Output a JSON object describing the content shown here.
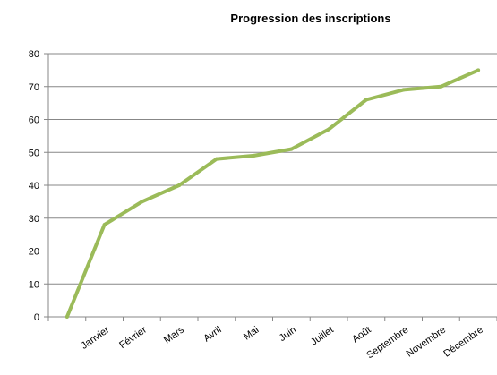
{
  "chart_data": {
    "type": "line",
    "title": "Progression des inscriptions",
    "xlabel": "",
    "ylabel": "",
    "categories": [
      "",
      "Janvier",
      "Février",
      "Mars",
      "Avril",
      "Mai",
      "Juin",
      "Juillet",
      "Août",
      "Septembre",
      "Novembre",
      "Décembre"
    ],
    "series": [
      {
        "values": [
          0,
          28,
          35,
          40,
          48,
          49,
          51,
          57,
          66,
          69,
          70,
          75
        ],
        "color": "#9BBB59"
      }
    ],
    "ylim": [
      0,
      80
    ],
    "yticks": [
      0,
      10,
      20,
      30,
      40,
      50,
      60,
      70,
      80
    ],
    "grid": true,
    "legend": "none"
  }
}
